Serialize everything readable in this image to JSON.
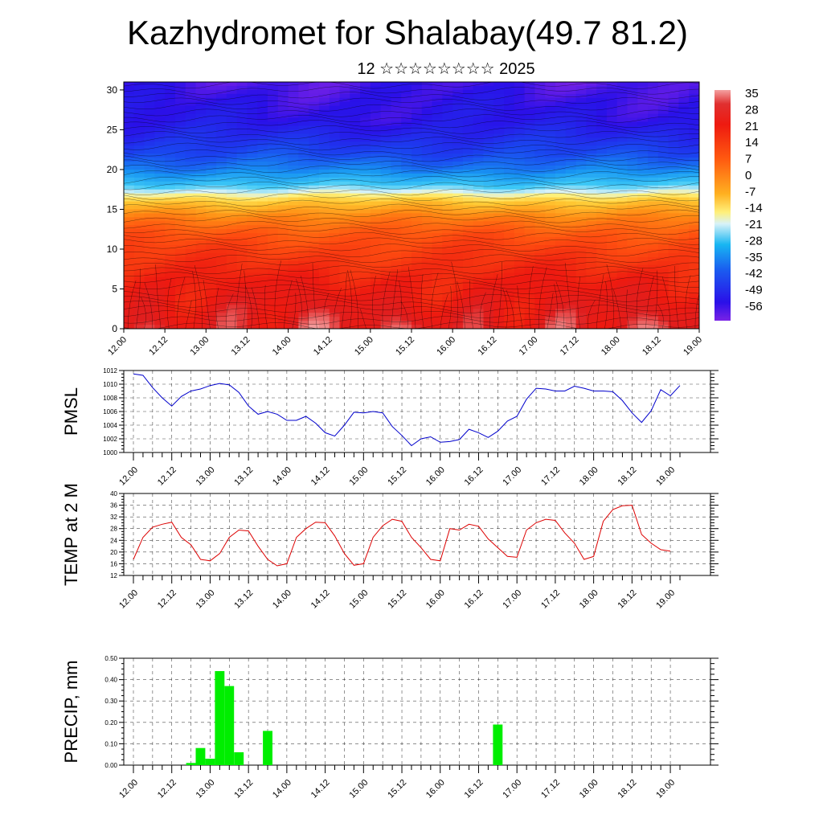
{
  "title": "Kazhydromet for Shalabay(49.7 81.2)",
  "subtitle": "12 ☆☆☆☆☆☆☆☆ 2025",
  "time_labels": [
    "12.00",
    "12.12",
    "13.00",
    "13.12",
    "14.00",
    "14.12",
    "15.00",
    "15.12",
    "16.00",
    "16.12",
    "17.00",
    "17.12",
    "18.00",
    "18.12",
    "19.00"
  ],
  "chart_data": [
    {
      "type": "heatmap",
      "name": "cross-section",
      "ylim": [
        0,
        31
      ],
      "yticks": [
        0,
        5,
        10,
        15,
        20,
        25,
        30
      ],
      "colorbar": {
        "labels": [
          "35",
          "28",
          "21",
          "14",
          "7",
          "0",
          "-7",
          "-14",
          "-21",
          "-28",
          "-35",
          "-42",
          "-49",
          "-56"
        ],
        "values": [
          35,
          28,
          21,
          14,
          7,
          0,
          -7,
          -14,
          -21,
          -28,
          -35,
          -42,
          -49,
          -56
        ]
      },
      "profile": {
        "levels": [
          0,
          2,
          4,
          6,
          8,
          10,
          12,
          14,
          16,
          18,
          20,
          22,
          24,
          26,
          28,
          31
        ],
        "temperature": [
          30,
          28,
          26,
          24,
          21,
          18,
          14,
          7,
          -5,
          -25,
          -38,
          -45,
          -50,
          -54,
          -55,
          -57
        ]
      }
    },
    {
      "type": "line",
      "name": "PMSL",
      "ylabel": "PMSL",
      "ylim": [
        1000,
        1012
      ],
      "yticks": [
        1000,
        1002,
        1004,
        1006,
        1008,
        1010,
        1012
      ],
      "color": "#0000cc",
      "series": [
        {
          "values": [
            1011.5,
            1011.3,
            1009.5,
            1008.0,
            1006.8,
            1008.2,
            1009.0,
            1009.3,
            1009.8,
            1010.1,
            1009.9,
            1008.8,
            1006.8,
            1005.6,
            1006.0,
            1005.6,
            1004.7,
            1004.7,
            1005.3,
            1004.3,
            1002.9,
            1002.4,
            1004.0,
            1005.9,
            1005.8,
            1006.0,
            1005.8,
            1003.8,
            1002.5,
            1001.0,
            1002.0,
            1002.3,
            1001.5,
            1001.6,
            1001.9,
            1003.4,
            1002.9,
            1002.2,
            1003.1,
            1004.6,
            1005.3,
            1007.8,
            1009.4,
            1009.3,
            1009.0,
            1009.0,
            1009.7,
            1009.4,
            1009.0,
            1009.0,
            1008.9,
            1007.6,
            1005.8,
            1004.4,
            1006.1,
            1009.2,
            1008.3,
            1009.8
          ]
        }
      ]
    },
    {
      "type": "line",
      "name": "TEMP at 2 M",
      "ylabel": "TEMP at 2 M",
      "ylim": [
        12,
        40
      ],
      "yticks": [
        12,
        16,
        20,
        24,
        28,
        32,
        36,
        40
      ],
      "color": "#dd0000",
      "series": [
        {
          "values": [
            17.5,
            25.0,
            28.5,
            29.5,
            30.2,
            25.0,
            22.5,
            17.5,
            17.0,
            19.5,
            25.0,
            27.5,
            27.2,
            22.0,
            17.5,
            15.3,
            16.0,
            25.0,
            28.0,
            30.2,
            30.0,
            25.5,
            19.5,
            15.5,
            16.0,
            25.0,
            29.0,
            31.2,
            30.5,
            25.0,
            21.5,
            17.5,
            17.0,
            28.0,
            27.5,
            29.5,
            28.8,
            24.5,
            21.5,
            18.5,
            18.2,
            27.5,
            30.0,
            31.2,
            30.8,
            26.5,
            23.0,
            17.5,
            18.5,
            30.5,
            34.5,
            35.8,
            36.0,
            26.0,
            23.0,
            20.8,
            20.3
          ]
        }
      ]
    },
    {
      "type": "bar",
      "name": "PRECIP",
      "ylabel": "PRECIP, mm",
      "ylim": [
        0,
        0.5
      ],
      "yticks": [
        "0.00",
        "0.10",
        "0.20",
        "0.30",
        "0.40",
        "0.50"
      ],
      "color": "#00ee00",
      "bars": [
        {
          "x": 6,
          "value": 0.01
        },
        {
          "x": 7,
          "value": 0.08
        },
        {
          "x": 8,
          "value": 0.03
        },
        {
          "x": 9,
          "value": 0.44
        },
        {
          "x": 10,
          "value": 0.37
        },
        {
          "x": 11,
          "value": 0.06
        },
        {
          "x": 14,
          "value": 0.16
        },
        {
          "x": 38,
          "value": 0.19
        }
      ]
    }
  ]
}
